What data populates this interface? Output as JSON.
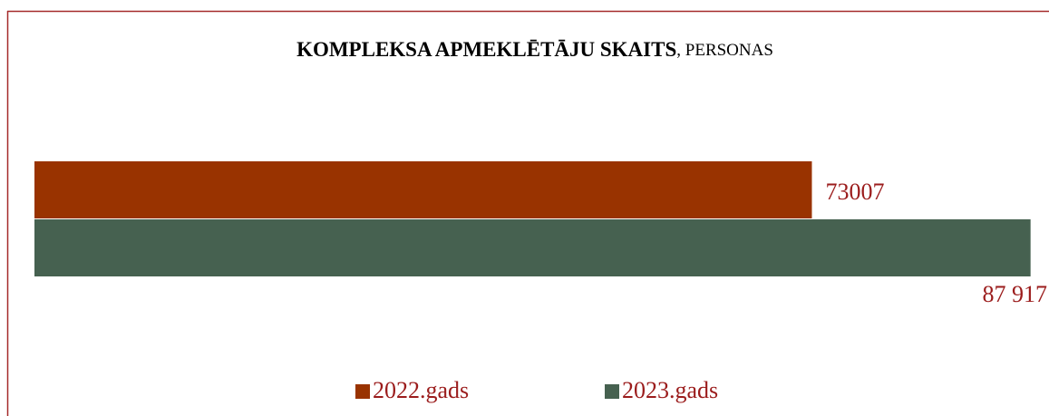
{
  "chart_data": {
    "type": "hbar",
    "title": "KOMPLEKSA APMEKLĒTĀJU SKAITS",
    "subtitle": ", PERSONAS",
    "categories": [
      null
    ],
    "series": [
      {
        "name": "2022.gads",
        "color": "#993300",
        "values": [
          73007
        ]
      },
      {
        "name": "2023.gads",
        "color": "#466150",
        "values": [
          87917
        ],
        "value_labels": [
          "87 917"
        ]
      }
    ],
    "xlim": [
      20000,
      88000
    ],
    "label_color": "#9b1c1c",
    "legend": "bottom"
  }
}
